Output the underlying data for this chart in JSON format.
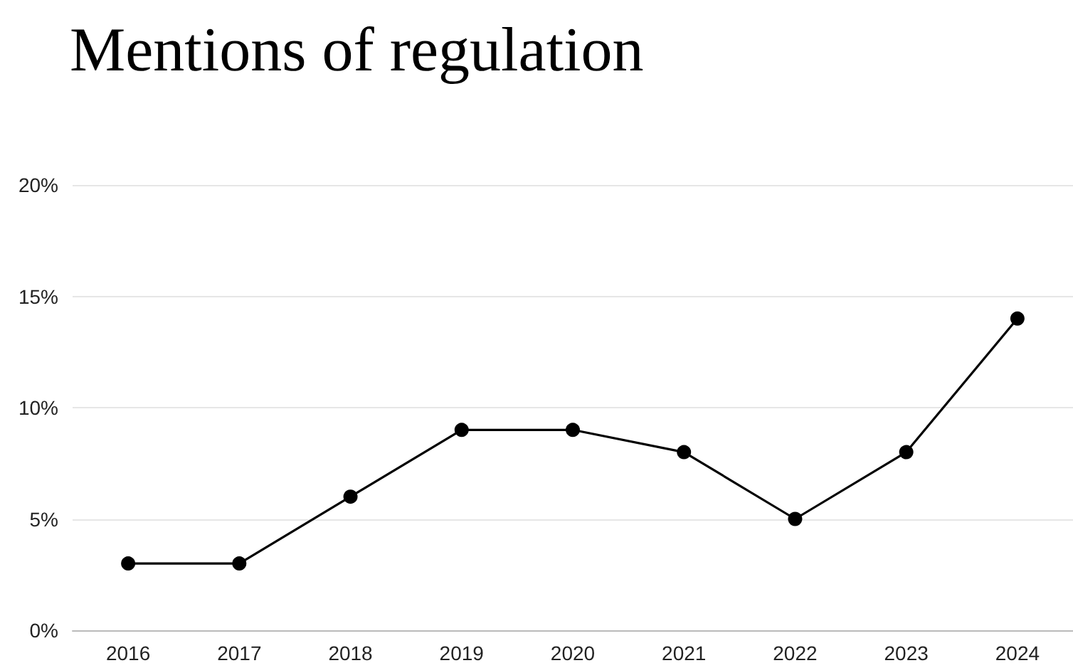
{
  "chart_data": {
    "type": "line",
    "title": "Mentions of regulation",
    "categories": [
      "2016",
      "2017",
      "2018",
      "2019",
      "2020",
      "2021",
      "2022",
      "2023",
      "2024"
    ],
    "series": [
      {
        "color": "#000000",
        "values": [
          3,
          3,
          6,
          9,
          9,
          8,
          5,
          8,
          14
        ]
      }
    ],
    "ylim": [
      0,
      20
    ],
    "yticks": [
      {
        "value": 0,
        "label": "0%"
      },
      {
        "value": 5,
        "label": "5%"
      },
      {
        "value": 10,
        "label": "10%"
      },
      {
        "value": 15,
        "label": "15%"
      },
      {
        "value": 20,
        "label": "20%"
      }
    ],
    "grid": "y",
    "marker": "circle",
    "line_style": "solid"
  }
}
